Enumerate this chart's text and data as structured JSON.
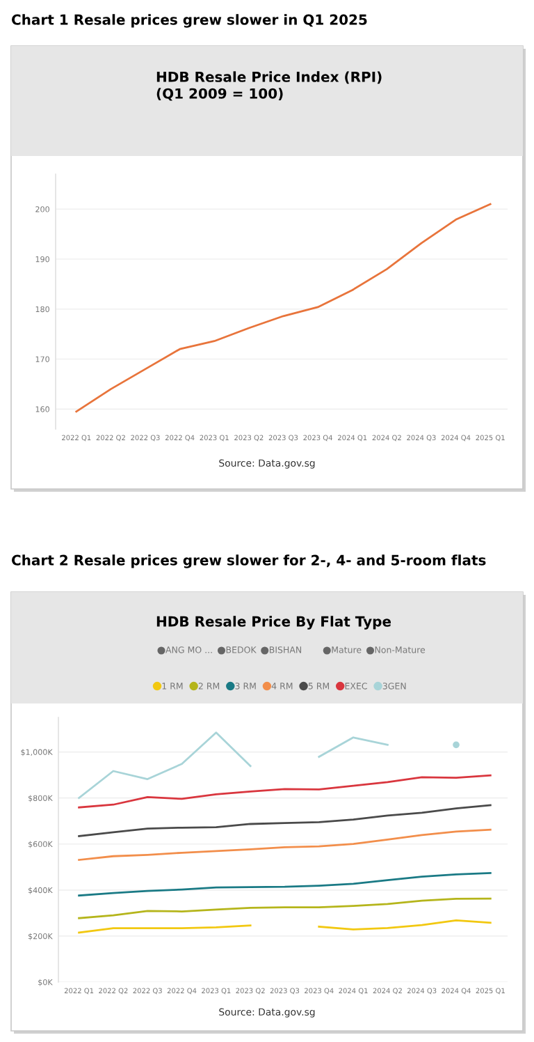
{
  "chart_data": [
    {
      "type": "line",
      "title": "Chart 1 Resale prices grew slower in Q1 2025",
      "subtitle": "HDB Resale Price Index (RPI)\n(Q1 2009 = 100)",
      "categories": [
        "2022 Q1",
        "2022 Q2",
        "2022 Q3",
        "2022 Q4",
        "2023 Q1",
        "2023 Q2",
        "2023 Q3",
        "2023 Q4",
        "2024 Q1",
        "2024 Q2",
        "2024 Q3",
        "2024 Q4",
        "2025 Q1"
      ],
      "series": [
        {
          "color": "#e8743b",
          "values": [
            159.5,
            164,
            168,
            172,
            173.6,
            176.2,
            178.6,
            180.4,
            183.8,
            188,
            193.2,
            197.9,
            201
          ]
        }
      ],
      "ylim": [
        156,
        207
      ],
      "yticks": [
        160,
        170,
        180,
        190,
        200
      ],
      "grid": "y",
      "annotations": [
        "Source: Data.gov.sg"
      ]
    },
    {
      "type": "line",
      "title": "Chart 2 Resale prices grew slower for 2-, 4- and 5-room flats",
      "subtitle": "HDB Resale Price By Flat Type",
      "categories": [
        "2022 Q1",
        "2022 Q2",
        "2022 Q3",
        "2022 Q4",
        "2023 Q1",
        "2023 Q2",
        "2023 Q3",
        "2023 Q4",
        "2024 Q1",
        "2024 Q2",
        "2024 Q3",
        "2024 Q4",
        "2025 Q1"
      ],
      "series": [
        {
          "name": "1 RM",
          "color": "#f2c811",
          "values": [
            215,
            234,
            234,
            234,
            238,
            246,
            null,
            241,
            229,
            235,
            248,
            268,
            258
          ]
        },
        {
          "name": "2 RM",
          "color": "#b5b51b",
          "values": [
            278,
            290,
            309,
            307,
            315,
            323,
            325,
            325,
            331,
            339,
            354,
            362,
            363
          ]
        },
        {
          "name": "3 RM",
          "color": "#1a7a85",
          "values": [
            376,
            387,
            396,
            402,
            411,
            413,
            414,
            419,
            427,
            443,
            458,
            468,
            474
          ]
        },
        {
          "name": "4 RM",
          "color": "#f28e4b",
          "values": [
            531,
            547,
            553,
            562,
            569,
            577,
            586,
            590,
            600,
            619,
            639,
            654,
            662
          ]
        },
        {
          "name": "5 RM",
          "color": "#4a4a4a",
          "values": [
            634,
            651,
            667,
            671,
            673,
            687,
            691,
            695,
            706,
            724,
            736,
            755,
            769
          ]
        },
        {
          "name": "EXEC",
          "color": "#d9363e",
          "values": [
            759,
            771,
            804,
            796,
            816,
            828,
            839,
            837,
            853,
            869,
            890,
            888,
            898
          ]
        },
        {
          "name": "3GEN",
          "color": "#a8d4d8",
          "values": [
            800,
            917,
            882,
            948,
            1084,
            939,
            null,
            979,
            1063,
            1031,
            null,
            1031,
            null
          ]
        }
      ],
      "ylim": [
        0,
        1150
      ],
      "yticks": [
        {
          "value": 0,
          "label": "$0K"
        },
        {
          "value": 200,
          "label": "$200K"
        },
        {
          "value": 400,
          "label": "$400K"
        },
        {
          "value": 600,
          "label": "$600K"
        },
        {
          "value": 800,
          "label": "$800K"
        },
        {
          "value": 1000,
          "label": "$1,000K"
        }
      ],
      "grid": "y",
      "legend": "top",
      "annotations": [
        "ANG MO ...",
        "BEDOK",
        "BISHAN",
        "Mature",
        "Non-Mature",
        "Source: Data.gov.sg"
      ]
    }
  ]
}
